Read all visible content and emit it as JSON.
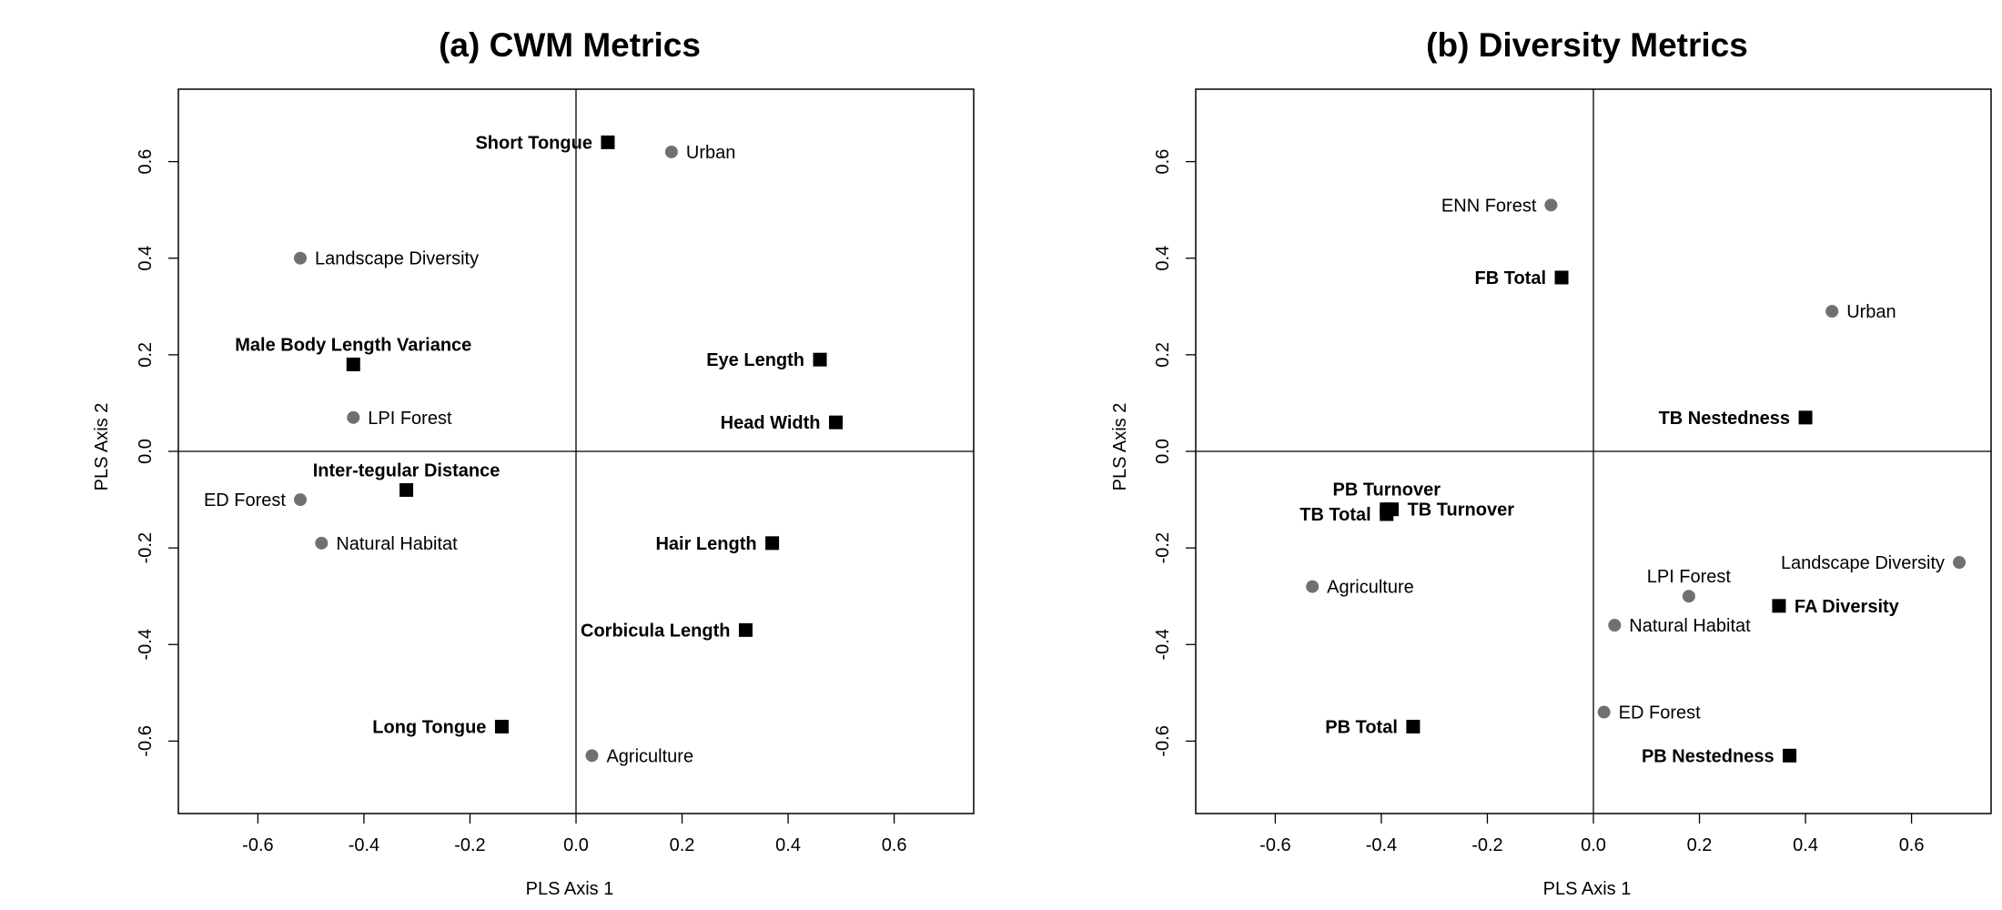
{
  "colors": {
    "predictor": "#707070",
    "response": "#000000",
    "frame": "#000000"
  },
  "chart_data": [
    {
      "type": "scatter",
      "title": "(a) CWM Metrics",
      "xlabel": "PLS Axis 1",
      "ylabel": "PLS Axis 2",
      "xlim": [
        -0.75,
        0.75
      ],
      "ylim": [
        -0.75,
        0.75
      ],
      "xticks": [
        "-0.6",
        "-0.4",
        "-0.2",
        "0.0",
        "0.2",
        "0.4",
        "0.6"
      ],
      "yticks": [
        "-0.6",
        "-0.4",
        "-0.2",
        "0.0",
        "0.2",
        "0.4",
        "0.6"
      ],
      "grid": false,
      "reference_lines": {
        "x": 0,
        "y": 0
      },
      "series": [
        {
          "marker": "circle",
          "points": [
            {
              "label": "Urban",
              "x": 0.18,
              "y": 0.62,
              "side": "right"
            },
            {
              "label": "Landscape Diversity",
              "x": -0.52,
              "y": 0.4,
              "side": "right"
            },
            {
              "label": "LPI Forest",
              "x": -0.42,
              "y": 0.07,
              "side": "right"
            },
            {
              "label": "ED Forest",
              "x": -0.52,
              "y": -0.1,
              "side": "left"
            },
            {
              "label": "Natural Habitat",
              "x": -0.48,
              "y": -0.19,
              "side": "right"
            },
            {
              "label": "Agriculture",
              "x": 0.03,
              "y": -0.63,
              "side": "right"
            }
          ]
        },
        {
          "marker": "square",
          "points": [
            {
              "label": "Short Tongue",
              "x": 0.06,
              "y": 0.64,
              "side": "left"
            },
            {
              "label": "Male Body Length Variance",
              "x": -0.42,
              "y": 0.18,
              "side": "above"
            },
            {
              "label": "Eye Length",
              "x": 0.46,
              "y": 0.19,
              "side": "left"
            },
            {
              "label": "Head Width",
              "x": 0.49,
              "y": 0.06,
              "side": "left"
            },
            {
              "label": "Inter-tegular Distance",
              "x": -0.32,
              "y": -0.08,
              "side": "above"
            },
            {
              "label": "Hair Length",
              "x": 0.37,
              "y": -0.19,
              "side": "left"
            },
            {
              "label": "Corbicula Length",
              "x": 0.32,
              "y": -0.37,
              "side": "left"
            },
            {
              "label": "Long Tongue",
              "x": -0.14,
              "y": -0.57,
              "side": "left"
            }
          ]
        }
      ]
    },
    {
      "type": "scatter",
      "title": "(b) Diversity Metrics",
      "xlabel": "PLS Axis 1",
      "ylabel": "PLS Axis 2",
      "xlim": [
        -0.75,
        0.75
      ],
      "ylim": [
        -0.75,
        0.75
      ],
      "xticks": [
        "-0.6",
        "-0.4",
        "-0.2",
        "0.0",
        "0.2",
        "0.4",
        "0.6"
      ],
      "yticks": [
        "-0.6",
        "-0.4",
        "-0.2",
        "0.0",
        "0.2",
        "0.4",
        "0.6"
      ],
      "grid": false,
      "reference_lines": {
        "x": 0,
        "y": 0
      },
      "series": [
        {
          "marker": "circle",
          "points": [
            {
              "label": "ENN Forest",
              "x": -0.08,
              "y": 0.51,
              "side": "left"
            },
            {
              "label": "Urban",
              "x": 0.45,
              "y": 0.29,
              "side": "right"
            },
            {
              "label": "Agriculture",
              "x": -0.53,
              "y": -0.28,
              "side": "right"
            },
            {
              "label": "Landscape Diversity",
              "x": 0.69,
              "y": -0.23,
              "side": "left"
            },
            {
              "label": "LPI Forest",
              "x": 0.18,
              "y": -0.3,
              "side": "above"
            },
            {
              "label": "Natural Habitat",
              "x": 0.04,
              "y": -0.36,
              "side": "right"
            },
            {
              "label": "ED Forest",
              "x": 0.02,
              "y": -0.54,
              "side": "right"
            }
          ]
        },
        {
          "marker": "square",
          "points": [
            {
              "label": "FB Total",
              "x": -0.06,
              "y": 0.36,
              "side": "left"
            },
            {
              "label": "TB Nestedness",
              "x": 0.4,
              "y": 0.07,
              "side": "left"
            },
            {
              "label": "PB Turnover",
              "x": -0.39,
              "y": -0.12,
              "side": "above"
            },
            {
              "label": "TB Total",
              "x": -0.39,
              "y": -0.13,
              "side": "left"
            },
            {
              "label": "TB Turnover",
              "x": -0.38,
              "y": -0.12,
              "side": "right"
            },
            {
              "label": "FA Diversity",
              "x": 0.35,
              "y": -0.32,
              "side": "right"
            },
            {
              "label": "PB Total",
              "x": -0.34,
              "y": -0.57,
              "side": "left"
            },
            {
              "label": "PB Nestedness",
              "x": 0.37,
              "y": -0.63,
              "side": "left"
            }
          ]
        }
      ]
    }
  ]
}
